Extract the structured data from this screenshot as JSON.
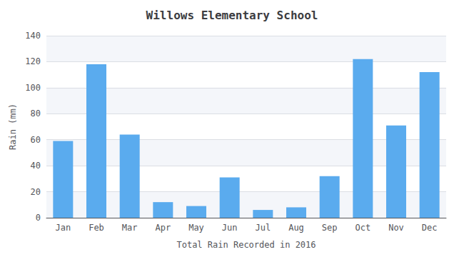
{
  "chart_data": {
    "type": "bar",
    "title": "Willows Elementary School",
    "xlabel": "Total Rain Recorded in 2016",
    "ylabel": "Rain (mm)",
    "categories": [
      "Jan",
      "Feb",
      "Mar",
      "Apr",
      "May",
      "Jun",
      "Jul",
      "Aug",
      "Sep",
      "Oct",
      "Nov",
      "Dec"
    ],
    "values": [
      59,
      118,
      64,
      12,
      9,
      31,
      6,
      8,
      32,
      122,
      71,
      112
    ],
    "color": "#5aabee",
    "ylim": [
      0,
      140
    ],
    "yticks": [
      0,
      20,
      40,
      60,
      80,
      100,
      120,
      140
    ],
    "grid": true
  }
}
